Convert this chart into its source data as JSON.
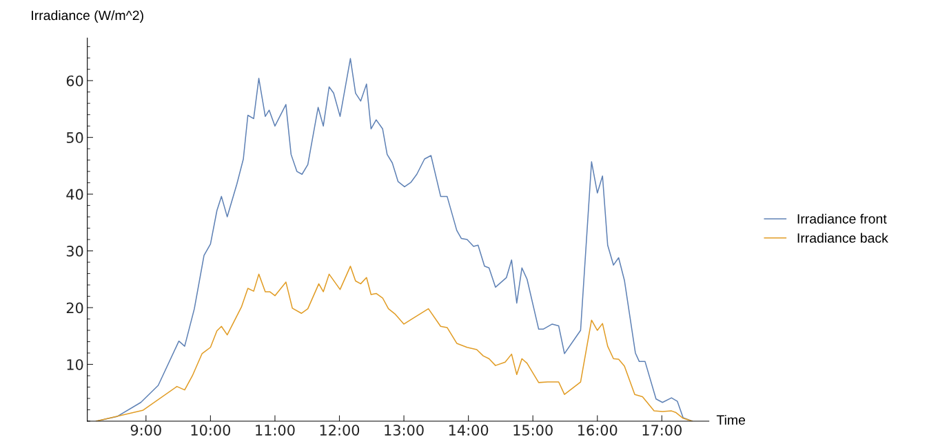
{
  "chart_data": {
    "type": "line",
    "xlabel": "Time",
    "ylabel": "Irradiance (W/m^2)",
    "xlim": [
      8.09,
      17.73
    ],
    "ylim": [
      0,
      67.5
    ],
    "xticks": [
      {
        "value": 9,
        "label": "9:00"
      },
      {
        "value": 10,
        "label": "10:00"
      },
      {
        "value": 11,
        "label": "11:00"
      },
      {
        "value": 12,
        "label": "12:00"
      },
      {
        "value": 13,
        "label": "13:00"
      },
      {
        "value": 14,
        "label": "14:00"
      },
      {
        "value": 15,
        "label": "15:00"
      },
      {
        "value": 16,
        "label": "16:00"
      },
      {
        "value": 17,
        "label": "17:00"
      }
    ],
    "yticks": [
      10,
      20,
      30,
      40,
      50,
      60
    ],
    "grid": false,
    "legend": "right",
    "marker": "none",
    "line_style": "solid",
    "series": [
      {
        "name": "Irradiance front",
        "color": "#5e81b5",
        "x": [
          8.23,
          8.55,
          8.92,
          9.19,
          9.51,
          9.6,
          9.75,
          9.9,
          10.0,
          10.1,
          10.17,
          10.26,
          10.41,
          10.51,
          10.58,
          10.67,
          10.75,
          10.85,
          10.91,
          11.0,
          11.17,
          11.25,
          11.34,
          11.42,
          11.51,
          11.67,
          11.75,
          11.84,
          11.91,
          12.01,
          12.17,
          12.25,
          12.33,
          12.42,
          12.49,
          12.57,
          12.67,
          12.74,
          12.82,
          12.91,
          13.01,
          13.11,
          13.2,
          13.32,
          13.42,
          13.57,
          13.67,
          13.82,
          13.89,
          13.98,
          14.08,
          14.15,
          14.25,
          14.32,
          14.42,
          14.59,
          14.67,
          14.75,
          14.83,
          14.91,
          15.09,
          15.16,
          15.3,
          15.4,
          15.49,
          15.74,
          15.91,
          16.0,
          16.08,
          16.16,
          16.25,
          16.33,
          16.42,
          16.59,
          16.65,
          16.74,
          16.91,
          17.01,
          17.15,
          17.24,
          17.33,
          17.47
        ],
        "values": [
          0,
          0.8,
          3.3,
          6.3,
          14.1,
          13.2,
          19.8,
          29.2,
          31.2,
          37.1,
          39.6,
          36.0,
          41.8,
          46.2,
          53.9,
          53.3,
          60.4,
          53.7,
          54.8,
          52.0,
          55.8,
          47.0,
          44.0,
          43.5,
          45.2,
          55.3,
          52.0,
          58.9,
          57.8,
          53.7,
          63.9,
          57.8,
          56.4,
          59.4,
          51.5,
          53.1,
          51.5,
          47.0,
          45.5,
          42.2,
          41.3,
          42.1,
          43.5,
          46.2,
          46.8,
          39.6,
          39.6,
          33.6,
          32.2,
          32.0,
          30.8,
          31.0,
          27.3,
          27.0,
          23.6,
          25.3,
          28.4,
          20.8,
          27.0,
          25.0,
          16.2,
          16.2,
          17.1,
          16.8,
          11.9,
          16.0,
          45.7,
          40.2,
          43.2,
          31.0,
          27.5,
          28.8,
          24.8,
          12.0,
          10.5,
          10.5,
          3.9,
          3.3,
          4.1,
          3.5,
          0.6,
          0
        ]
      },
      {
        "name": "Irradiance back",
        "color": "#e19c24",
        "x": [
          8.23,
          8.95,
          9.48,
          9.6,
          9.72,
          9.87,
          10.0,
          10.1,
          10.17,
          10.26,
          10.48,
          10.58,
          10.67,
          10.75,
          10.85,
          10.92,
          11.0,
          11.17,
          11.27,
          11.41,
          11.51,
          11.68,
          11.75,
          11.84,
          12.01,
          12.17,
          12.25,
          12.33,
          12.42,
          12.49,
          12.57,
          12.67,
          12.76,
          12.86,
          13.0,
          13.11,
          13.38,
          13.57,
          13.67,
          13.82,
          13.98,
          14.13,
          14.23,
          14.32,
          14.42,
          14.57,
          14.67,
          14.75,
          14.83,
          14.91,
          15.09,
          15.23,
          15.4,
          15.49,
          15.74,
          15.91,
          16.0,
          16.08,
          16.16,
          16.25,
          16.33,
          16.42,
          16.58,
          16.7,
          16.88,
          17.01,
          17.15,
          17.22,
          17.33,
          17.47
        ],
        "values": [
          0,
          1.9,
          6.1,
          5.5,
          8.0,
          11.9,
          13.0,
          15.9,
          16.7,
          15.2,
          20.1,
          23.4,
          22.9,
          25.9,
          22.8,
          22.8,
          22.1,
          24.5,
          19.9,
          19.0,
          19.8,
          24.2,
          22.8,
          25.9,
          23.2,
          27.3,
          24.7,
          24.2,
          25.3,
          22.3,
          22.5,
          21.7,
          19.8,
          18.9,
          17.1,
          17.9,
          19.8,
          16.7,
          16.5,
          13.7,
          13.0,
          12.6,
          11.5,
          11.0,
          9.8,
          10.4,
          11.8,
          8.2,
          11.0,
          10.2,
          6.8,
          6.9,
          6.9,
          4.7,
          6.9,
          17.8,
          16.0,
          17.2,
          13.2,
          11.0,
          10.9,
          9.7,
          4.7,
          4.3,
          1.8,
          1.7,
          1.8,
          1.5,
          0.5,
          0
        ]
      }
    ]
  }
}
